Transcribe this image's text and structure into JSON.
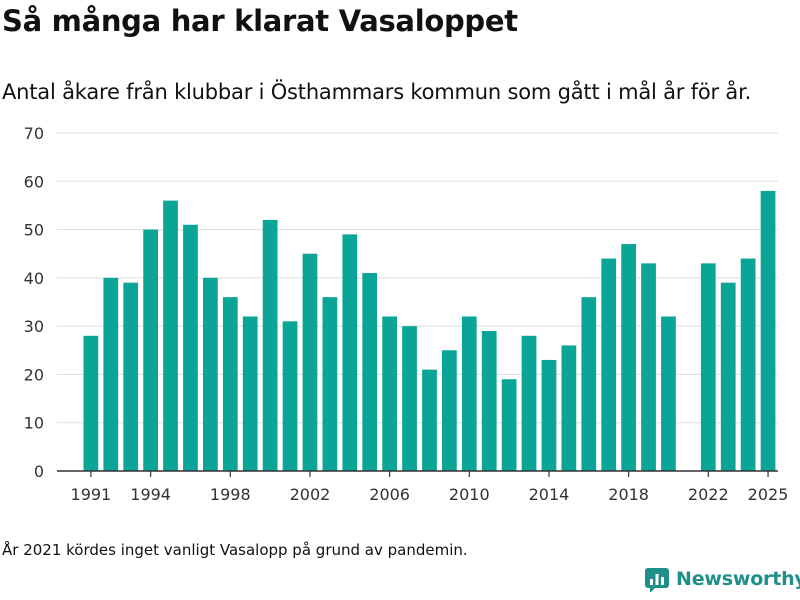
{
  "header": {
    "title": "Så många har klarat Vasaloppet",
    "subtitle": "Antal åkare från klubbar i Östhammars kommun som gått i mål år för år."
  },
  "footer": {
    "note": "År 2021 kördes inget vanligt Vasalopp på grund av pandemin.",
    "brand": "Newsworthy",
    "brand_icon": "newsworthy-logo-icon"
  },
  "colors": {
    "bar": "#0aa597",
    "brand": "#1f8f8a",
    "grid": "#dddddd",
    "axis": "#333333",
    "tick_text": "#333333"
  },
  "chart_data": {
    "type": "bar",
    "title": "Så många har klarat Vasaloppet",
    "xlabel": "",
    "ylabel": "",
    "ylim": [
      0,
      70
    ],
    "yticks": [
      0,
      10,
      20,
      30,
      40,
      50,
      60,
      70
    ],
    "grid": true,
    "x": [
      1991,
      1992,
      1993,
      1994,
      1995,
      1996,
      1997,
      1998,
      1999,
      2000,
      2001,
      2002,
      2003,
      2004,
      2005,
      2006,
      2007,
      2008,
      2009,
      2010,
      2011,
      2012,
      2013,
      2014,
      2015,
      2016,
      2017,
      2018,
      2019,
      2020,
      2021,
      2022,
      2023,
      2024,
      2025
    ],
    "values": [
      28,
      40,
      39,
      50,
      56,
      51,
      40,
      36,
      32,
      52,
      31,
      45,
      36,
      49,
      41,
      32,
      30,
      21,
      25,
      32,
      29,
      19,
      28,
      23,
      26,
      36,
      44,
      47,
      43,
      32,
      null,
      43,
      39,
      44,
      58
    ],
    "xtick_labels": [
      "1991",
      "1994",
      "1998",
      "2002",
      "2006",
      "2010",
      "2014",
      "2018",
      "2022",
      "2025"
    ]
  }
}
